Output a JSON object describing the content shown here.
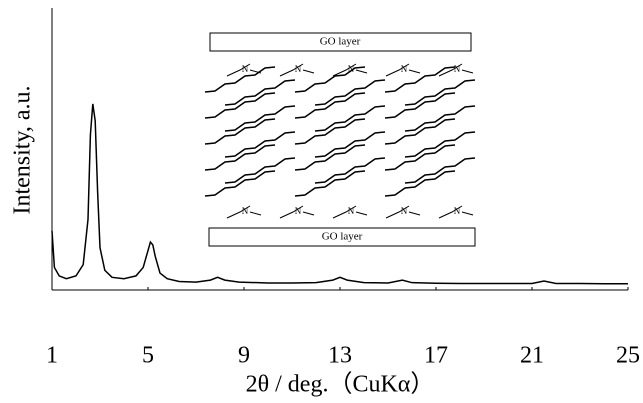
{
  "chart_data": {
    "type": "line",
    "y_label": "Intensity, a.u.",
    "x_label": "2θ / deg.（CuKα）",
    "x": [
      1,
      1.1,
      1.3,
      1.6,
      2.0,
      2.3,
      2.5,
      2.6,
      2.7,
      2.8,
      2.9,
      3.0,
      3.2,
      3.5,
      4.0,
      4.5,
      4.8,
      5.0,
      5.1,
      5.2,
      5.3,
      5.5,
      5.8,
      6.3,
      7.0,
      7.6,
      7.9,
      8.2,
      8.8,
      10,
      11,
      12,
      12.7,
      13,
      13.3,
      14,
      15,
      15.6,
      16,
      17,
      18,
      19,
      20,
      21,
      21.5,
      22,
      23,
      24,
      25
    ],
    "series": [
      {
        "color": "#000000",
        "values": [
          21,
          8,
          5,
          4,
          5,
          9,
          25,
          55,
          66,
          60,
          35,
          15,
          7,
          4.5,
          4,
          5,
          8,
          14,
          17,
          16,
          12,
          6,
          4,
          3,
          2.8,
          3.5,
          4.5,
          3.5,
          2.8,
          2.5,
          2.5,
          2.6,
          3.5,
          4.5,
          3.5,
          2.6,
          2.5,
          3.5,
          2.6,
          2.4,
          2.3,
          2.3,
          2.3,
          2.3,
          3.2,
          2.3,
          2.3,
          2.2,
          2.2
        ]
      }
    ],
    "xlim": [
      1,
      25
    ],
    "xticks": [
      1,
      5,
      9,
      13,
      17,
      21,
      25
    ],
    "ylim": [
      0,
      100
    ],
    "inset": {
      "top_layer": "GO layer",
      "bottom_layer": "GO layer",
      "ammonium": "N"
    }
  }
}
